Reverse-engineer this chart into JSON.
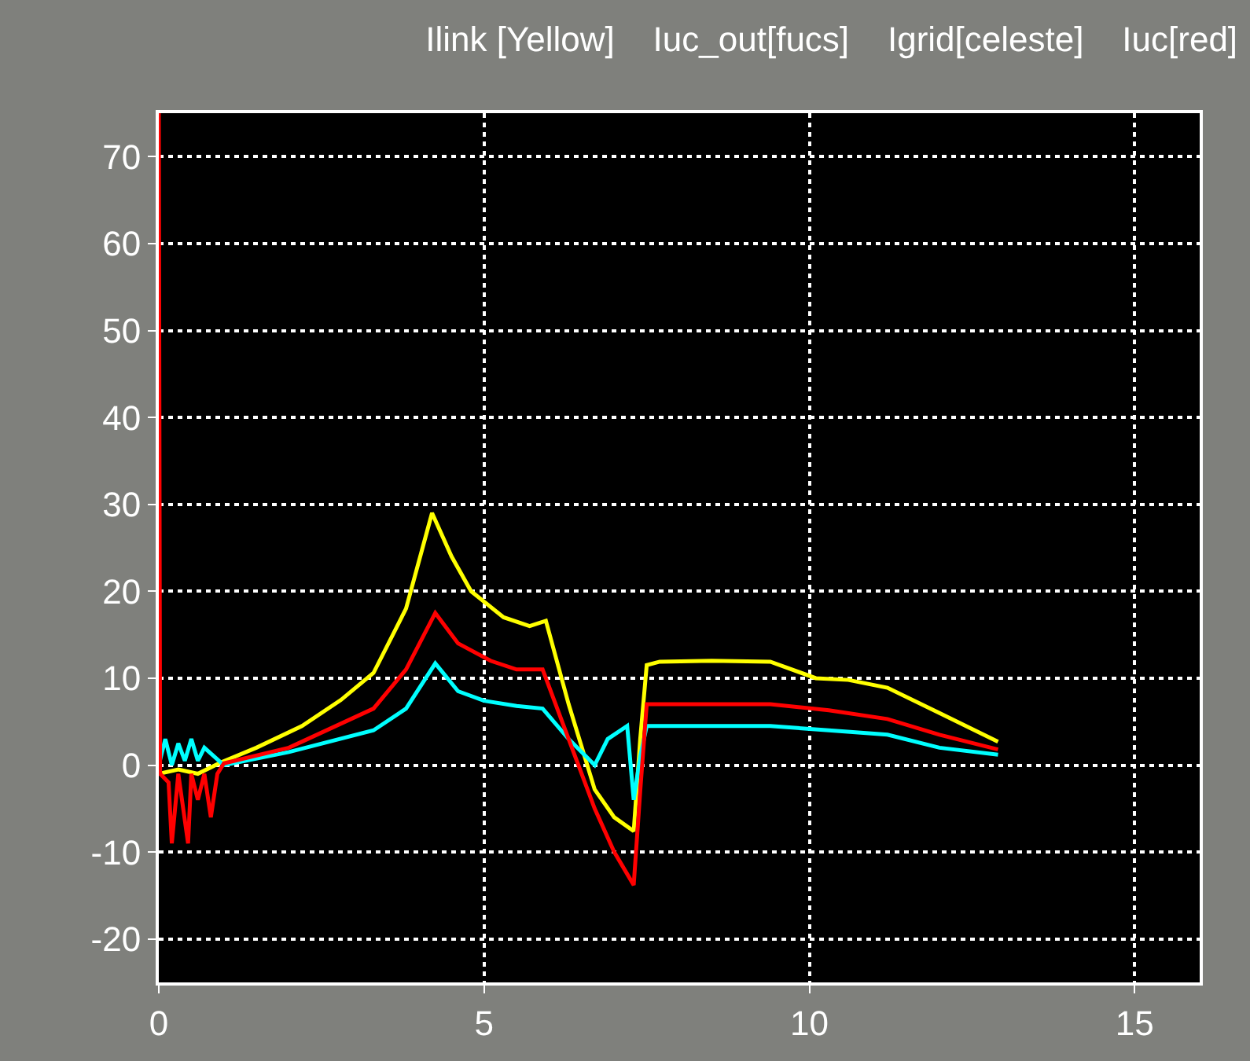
{
  "chart_data": {
    "type": "line",
    "title": "Ilink [Yellow]    Iuc_out[fucs]    Igrid[celeste]    Iuc[red]",
    "xlim": [
      0,
      16
    ],
    "ylim": [
      -25,
      75
    ],
    "xticks": [
      0,
      5,
      10,
      15
    ],
    "yticks": [
      -20,
      -10,
      0,
      10,
      20,
      30,
      40,
      50,
      60,
      70
    ],
    "grid": true,
    "marker": "none",
    "line_style": "solid",
    "series": [
      {
        "color": "#ffff00",
        "x": [
          0,
          0.3,
          0.6,
          0.95,
          1.5,
          2.2,
          2.8,
          3.3,
          3.8,
          4.2,
          4.5,
          4.8,
          5.3,
          5.7,
          5.95,
          6.3,
          6.7,
          7.0,
          7.3,
          7.4,
          7.5,
          7.7,
          8.5,
          9.4,
          10.1,
          10.6,
          11.2,
          12.0,
          12.9
        ],
        "values": [
          -1,
          -0.5,
          -1,
          0.3,
          2,
          4.5,
          7.5,
          10.6,
          18,
          29,
          24,
          20,
          17,
          16,
          16.6,
          7,
          -2.8,
          -6,
          -7.6,
          3,
          11.5,
          11.9,
          12,
          11.9,
          10,
          9.8,
          8.9,
          6,
          2.7
        ]
      },
      {
        "color": "#00ffff",
        "x": [
          0,
          0.1,
          0.2,
          0.3,
          0.4,
          0.5,
          0.6,
          0.7,
          1.0,
          2.0,
          3.3,
          3.8,
          4.25,
          4.6,
          5.0,
          5.5,
          5.9,
          6.3,
          6.7,
          6.9,
          7.2,
          7.3,
          7.4,
          7.5,
          8.5,
          9.4,
          10.3,
          11.2,
          12.0,
          12.9
        ],
        "values": [
          0,
          3,
          0,
          2.5,
          0.5,
          3,
          0.5,
          2,
          0,
          1.5,
          4,
          6.5,
          11.7,
          8.5,
          7.4,
          6.8,
          6.5,
          3,
          0,
          3,
          4.5,
          -4,
          1,
          4.5,
          4.5,
          4.5,
          4,
          3.5,
          2,
          1.2
        ]
      },
      {
        "color": "#ff0000",
        "x": [
          0,
          0.02,
          0.15,
          0.2,
          0.3,
          0.45,
          0.5,
          0.6,
          0.7,
          0.8,
          0.9,
          1.0,
          2.0,
          3.3,
          3.8,
          4.25,
          4.6,
          5.1,
          5.5,
          5.9,
          6.3,
          6.7,
          7.0,
          7.3,
          7.4,
          7.5,
          8.5,
          9.4,
          10.3,
          11.2,
          12.0,
          12.9
        ],
        "values": [
          75,
          -1,
          -2,
          -9,
          -1,
          -9,
          -1,
          -4,
          -1,
          -6,
          -1,
          0.2,
          2,
          6.5,
          11,
          17.5,
          14,
          12,
          11,
          11,
          3,
          -5,
          -10,
          -13.8,
          -3,
          7,
          7,
          7,
          6.3,
          5.3,
          3.5,
          1.8
        ]
      }
    ]
  }
}
